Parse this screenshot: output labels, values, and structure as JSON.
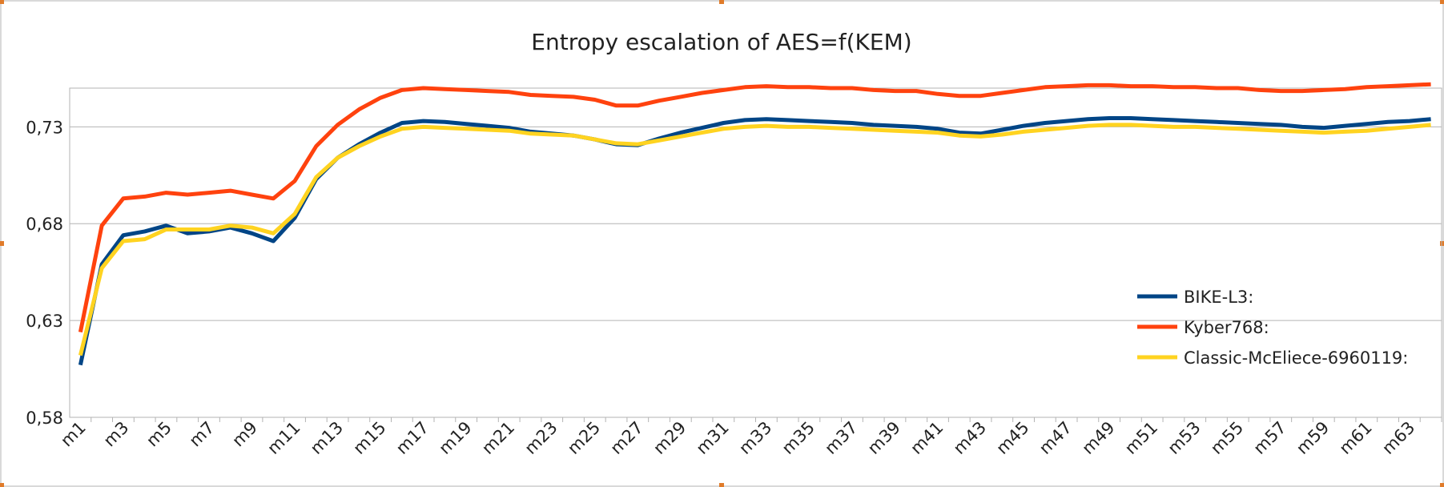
{
  "chart_data": {
    "type": "line",
    "title": "Entropy escalation of AES=f(KEM)",
    "xlabel": "",
    "ylabel": "",
    "ylim": [
      0.58,
      0.75
    ],
    "yticks": [
      0.58,
      0.63,
      0.68,
      0.73
    ],
    "ytick_labels": [
      "0,58",
      "0,63",
      "0,68",
      "0,73"
    ],
    "grid": true,
    "legend_position": "right",
    "categories": [
      "m1",
      "m2",
      "m3",
      "m4",
      "m5",
      "m6",
      "m7",
      "m8",
      "m9",
      "m10",
      "m11",
      "m12",
      "m13",
      "m14",
      "m15",
      "m16",
      "m17",
      "m18",
      "m19",
      "m20",
      "m21",
      "m22",
      "m23",
      "m24",
      "m25",
      "m26",
      "m27",
      "m28",
      "m29",
      "m30",
      "m31",
      "m32",
      "m33",
      "m34",
      "m35",
      "m36",
      "m37",
      "m38",
      "m39",
      "m40",
      "m41",
      "m42",
      "m43",
      "m44",
      "m45",
      "m46",
      "m47",
      "m48",
      "m49",
      "m50",
      "m51",
      "m52",
      "m53",
      "m54",
      "m55",
      "m56",
      "m57",
      "m58",
      "m59",
      "m60",
      "m61",
      "m62",
      "m63",
      "m64"
    ],
    "xtick_labels": [
      "m1",
      "m3",
      "m5",
      "m7",
      "m9",
      "m11",
      "m13",
      "m15",
      "m17",
      "m19",
      "m21",
      "m23",
      "m25",
      "m27",
      "m29",
      "m31",
      "m33",
      "m35",
      "m37",
      "m39",
      "m41",
      "m43",
      "m45",
      "m47",
      "m49",
      "m51",
      "m53",
      "m55",
      "m57",
      "m59",
      "m61",
      "m63"
    ],
    "series": [
      {
        "name": "BIKE-L3:",
        "color": "#004586",
        "values": [
          0.607,
          0.659,
          0.674,
          0.676,
          0.679,
          0.675,
          0.676,
          0.678,
          0.675,
          0.671,
          0.683,
          0.703,
          0.714,
          0.721,
          0.727,
          0.732,
          0.733,
          0.7325,
          0.7315,
          0.7305,
          0.7295,
          0.7275,
          0.7265,
          0.7255,
          0.7235,
          0.721,
          0.7205,
          0.724,
          0.727,
          0.7295,
          0.732,
          0.7335,
          0.734,
          0.7335,
          0.733,
          0.7325,
          0.732,
          0.731,
          0.7305,
          0.73,
          0.729,
          0.727,
          0.7265,
          0.7285,
          0.7305,
          0.732,
          0.733,
          0.734,
          0.7345,
          0.7345,
          0.734,
          0.7335,
          0.733,
          0.7325,
          0.732,
          0.7315,
          0.731,
          0.73,
          0.7295,
          0.7305,
          0.7315,
          0.7325,
          0.733,
          0.734
        ]
      },
      {
        "name": "Kyber768:",
        "color": "#ff420e",
        "values": [
          0.624,
          0.679,
          0.693,
          0.694,
          0.696,
          0.695,
          0.696,
          0.697,
          0.695,
          0.693,
          0.702,
          0.72,
          0.731,
          0.739,
          0.745,
          0.749,
          0.75,
          0.7495,
          0.749,
          0.7485,
          0.748,
          0.7465,
          0.746,
          0.7455,
          0.744,
          0.741,
          0.741,
          0.7435,
          0.7455,
          0.7475,
          0.749,
          0.7505,
          0.751,
          0.7505,
          0.7505,
          0.75,
          0.75,
          0.749,
          0.7485,
          0.7485,
          0.747,
          0.746,
          0.746,
          0.7475,
          0.749,
          0.7505,
          0.751,
          0.7515,
          0.7515,
          0.751,
          0.751,
          0.7505,
          0.7505,
          0.75,
          0.75,
          0.749,
          0.7485,
          0.7485,
          0.749,
          0.7495,
          0.7505,
          0.751,
          0.7515,
          0.752
        ]
      },
      {
        "name": "Classic-McEliece-6960119:",
        "color": "#ffd320",
        "values": [
          0.612,
          0.657,
          0.671,
          0.672,
          0.677,
          0.677,
          0.677,
          0.679,
          0.678,
          0.675,
          0.685,
          0.704,
          0.714,
          0.72,
          0.725,
          0.729,
          0.73,
          0.7295,
          0.729,
          0.7285,
          0.728,
          0.7265,
          0.726,
          0.7255,
          0.7235,
          0.7215,
          0.721,
          0.723,
          0.725,
          0.727,
          0.729,
          0.73,
          0.7305,
          0.73,
          0.73,
          0.7295,
          0.729,
          0.7285,
          0.728,
          0.7275,
          0.727,
          0.7255,
          0.725,
          0.726,
          0.7275,
          0.7285,
          0.7295,
          0.7305,
          0.731,
          0.731,
          0.7305,
          0.73,
          0.73,
          0.7295,
          0.729,
          0.7285,
          0.728,
          0.7275,
          0.727,
          0.7275,
          0.728,
          0.729,
          0.73,
          0.731
        ]
      }
    ]
  }
}
